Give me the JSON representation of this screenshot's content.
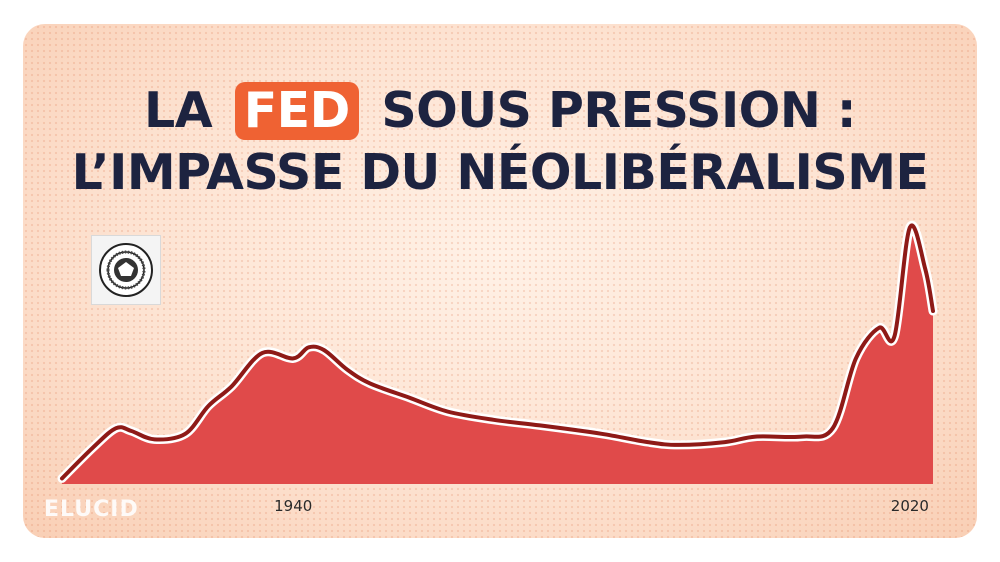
{
  "title": {
    "line1_before": "LA",
    "line1_badge": "FED",
    "line1_after": "SOUS PRESSION :",
    "line2": "L’IMPASSE DU NÉOLIBÉRALISME"
  },
  "colors": {
    "title": "#1d2340",
    "badge": "#ef6233",
    "area_fill": "#e04a4a",
    "line": "#8e1a17",
    "background": "#fde3d2"
  },
  "seal": {
    "icon": "federal-reserve-seal-icon",
    "text": "FEDERAL RESERVE SYSTEM"
  },
  "logo": "ELUCID",
  "chart_data": {
    "type": "area",
    "x": [
      1910,
      1914,
      1917,
      1919,
      1922,
      1926,
      1929,
      1932,
      1936,
      1940,
      1942,
      1944,
      1947,
      1950,
      1955,
      1960,
      1966,
      1972,
      1980,
      1986,
      1990,
      1996,
      2000,
      2006,
      2010,
      2013,
      2016,
      2018,
      2020,
      2022,
      2023
    ],
    "values": [
      2,
      13,
      20,
      19,
      16,
      18,
      28,
      35,
      47,
      45,
      49,
      48,
      41,
      36,
      31,
      26,
      23,
      21,
      18,
      15,
      14,
      15,
      17,
      17,
      20,
      45,
      56,
      53,
      92,
      77,
      62
    ],
    "ylim": [
      0,
      100
    ],
    "xlim": [
      1910,
      2023
    ],
    "x_ticks": [
      {
        "value": 1940,
        "label": "1940"
      },
      {
        "value": 2020,
        "label": "2020"
      }
    ],
    "grid": false,
    "legend": "none",
    "title": "",
    "xlabel": "",
    "ylabel": ""
  }
}
